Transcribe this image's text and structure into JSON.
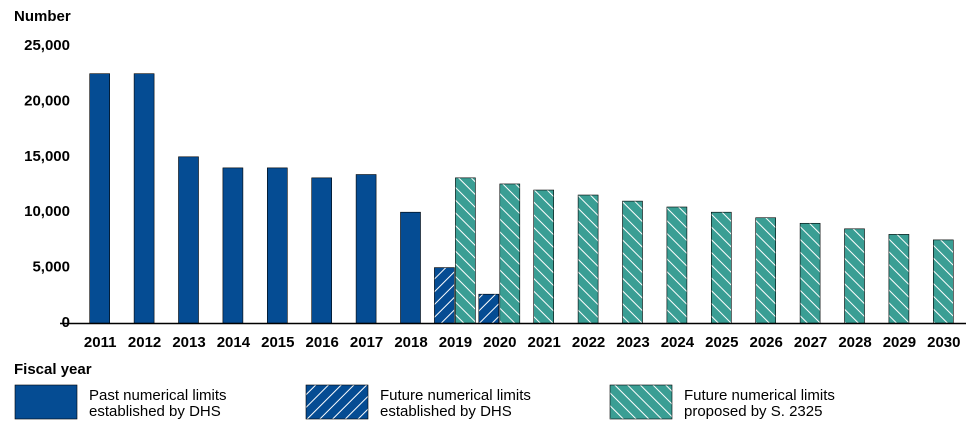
{
  "chart_data": {
    "type": "bar",
    "y_label": "Number",
    "x_label": "Fiscal year",
    "categories": [
      "2011",
      "2012",
      "2013",
      "2014",
      "2015",
      "2016",
      "2017",
      "2018",
      "2019",
      "2020",
      "2021",
      "2022",
      "2023",
      "2024",
      "2025",
      "2026",
      "2027",
      "2028",
      "2029",
      "2030"
    ],
    "series": [
      {
        "name": "Past numerical limits established by DHS",
        "color": "#054c93",
        "hatch": "none",
        "values": [
          22500,
          22500,
          15000,
          14000,
          14000,
          13100,
          13400,
          10000,
          null,
          null,
          null,
          null,
          null,
          null,
          null,
          null,
          null,
          null,
          null,
          null
        ]
      },
      {
        "name": "Future numerical limits established by DHS",
        "color": "#054c93",
        "hatch": "/",
        "values": [
          null,
          null,
          null,
          null,
          null,
          null,
          null,
          null,
          5000,
          2600,
          null,
          null,
          null,
          null,
          null,
          null,
          null,
          null,
          null,
          null
        ]
      },
      {
        "name": "Future numerical limits proposed by S. 2325",
        "color": "#3a9e94",
        "hatch": "\\",
        "values": [
          null,
          null,
          null,
          null,
          null,
          null,
          null,
          null,
          13100,
          12550,
          12000,
          11550,
          11000,
          10470,
          10000,
          9500,
          9000,
          8500,
          8000,
          7500
        ]
      }
    ],
    "ylim": [
      0,
      25000
    ],
    "yticks": [
      0,
      {
        "value": 5000,
        "label": "5,000"
      },
      {
        "value": 10000,
        "label": "10,000"
      },
      {
        "value": 15000,
        "label": "15,000"
      },
      {
        "value": 20000,
        "label": "20,000"
      },
      {
        "value": 25000,
        "label": "25,000"
      }
    ],
    "grid": false
  }
}
